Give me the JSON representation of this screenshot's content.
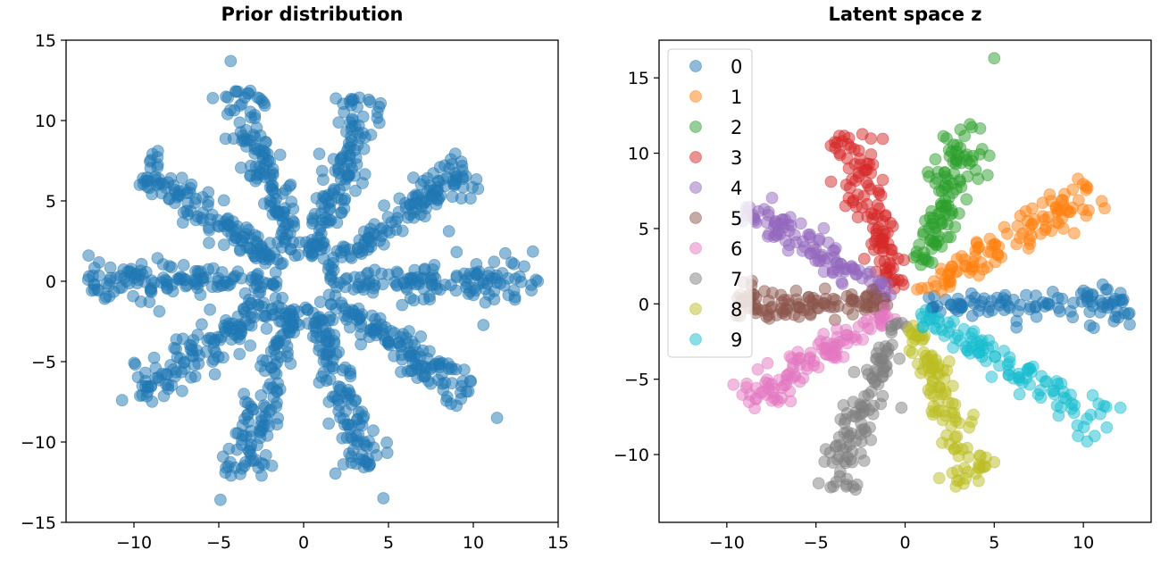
{
  "chart_data": [
    {
      "type": "scatter",
      "title": "Prior distribution",
      "xlabel": "",
      "ylabel": "",
      "xlim": [
        -14,
        15
      ],
      "ylim": [
        -15,
        15
      ],
      "xticks": [
        -10,
        -5,
        0,
        5,
        10,
        15
      ],
      "yticks": [
        -15,
        -10,
        -5,
        0,
        5,
        10,
        15
      ],
      "xtick_labels": [
        "−10",
        "−5",
        "0",
        "5",
        "10",
        "15"
      ],
      "ytick_labels": [
        "−15",
        "−10",
        "−5",
        "0",
        "5",
        "10",
        "15"
      ],
      "grid": false,
      "marker_alpha": 0.5,
      "series": [
        {
          "color": "#1f77b4",
          "arms": [
            {
              "angle_deg": 0,
              "r_range": [
                1.5,
                13.8
              ],
              "count": 130
            },
            {
              "angle_deg": 36,
              "r_range": [
                1.5,
                12.0
              ],
              "count": 130
            },
            {
              "angle_deg": 72,
              "r_range": [
                1.5,
                12.0
              ],
              "count": 130
            },
            {
              "angle_deg": 108,
              "r_range": [
                1.5,
                12.5
              ],
              "count": 130
            },
            {
              "angle_deg": 144,
              "r_range": [
                1.5,
                12.0
              ],
              "count": 130
            },
            {
              "angle_deg": 180,
              "r_range": [
                1.5,
                12.7
              ],
              "count": 130
            },
            {
              "angle_deg": 216,
              "r_range": [
                1.5,
                12.0
              ],
              "count": 130
            },
            {
              "angle_deg": 252,
              "r_range": [
                1.5,
                13.0
              ],
              "count": 130
            },
            {
              "angle_deg": 288,
              "r_range": [
                1.5,
                12.5
              ],
              "count": 130
            },
            {
              "angle_deg": 324,
              "r_range": [
                1.5,
                12.0
              ],
              "count": 130
            }
          ],
          "outliers": [
            [
              -4.3,
              13.7
            ],
            [
              -12.7,
              0.1
            ],
            [
              13.8,
              0.0
            ],
            [
              -4.9,
              -13.6
            ],
            [
              4.7,
              -13.5
            ],
            [
              11.4,
              -8.5
            ],
            [
              -10.7,
              -7.4
            ]
          ]
        }
      ]
    },
    {
      "type": "scatter",
      "title": "Latent space z",
      "xlabel": "",
      "ylabel": "",
      "xlim": [
        -13.8,
        13.8
      ],
      "ylim": [
        -14.5,
        17.5
      ],
      "xticks": [
        -10,
        -5,
        0,
        5,
        10
      ],
      "yticks": [
        -10,
        -5,
        0,
        5,
        10,
        15
      ],
      "xtick_labels": [
        "−10",
        "−5",
        "0",
        "5",
        "10"
      ],
      "ytick_labels": [
        "−10",
        "−5",
        "0",
        "5",
        "10",
        "15"
      ],
      "grid": false,
      "legend_position": "top-left",
      "marker_alpha": 0.5,
      "series": [
        {
          "name": "0",
          "color": "#1f77b4",
          "angle_deg": 0,
          "r_range": [
            1.0,
            12.6
          ],
          "count": 110
        },
        {
          "name": "1",
          "color": "#ff7f0e",
          "angle_deg": 36,
          "r_range": [
            1.0,
            13.0
          ],
          "count": 110
        },
        {
          "name": "2",
          "color": "#2ca02c",
          "angle_deg": 72,
          "r_range": [
            2.5,
            12.5
          ],
          "count": 110,
          "outliers": [
            [
              5.0,
              16.3
            ]
          ]
        },
        {
          "name": "3",
          "color": "#d62728",
          "angle_deg": 108,
          "r_range": [
            1.0,
            12.0
          ],
          "count": 110
        },
        {
          "name": "4",
          "color": "#9467bd",
          "angle_deg": 144,
          "r_range": [
            1.0,
            11.0
          ],
          "count": 110
        },
        {
          "name": "5",
          "color": "#8c564b",
          "angle_deg": 180,
          "r_range": [
            1.0,
            9.5
          ],
          "count": 110
        },
        {
          "name": "6",
          "color": "#e377c2",
          "angle_deg": 216,
          "r_range": [
            1.0,
            11.0
          ],
          "count": 110
        },
        {
          "name": "7",
          "color": "#7f7f7f",
          "angle_deg": 252,
          "r_range": [
            1.0,
            13.0
          ],
          "count": 110
        },
        {
          "name": "8",
          "color": "#bcbd22",
          "angle_deg": 288,
          "r_range": [
            1.0,
            13.0
          ],
          "count": 110
        },
        {
          "name": "9",
          "color": "#17becf",
          "angle_deg": 324,
          "r_range": [
            1.0,
            14.0
          ],
          "count": 110
        }
      ],
      "legend": [
        "0",
        "1",
        "2",
        "3",
        "4",
        "5",
        "6",
        "7",
        "8",
        "9"
      ]
    }
  ]
}
